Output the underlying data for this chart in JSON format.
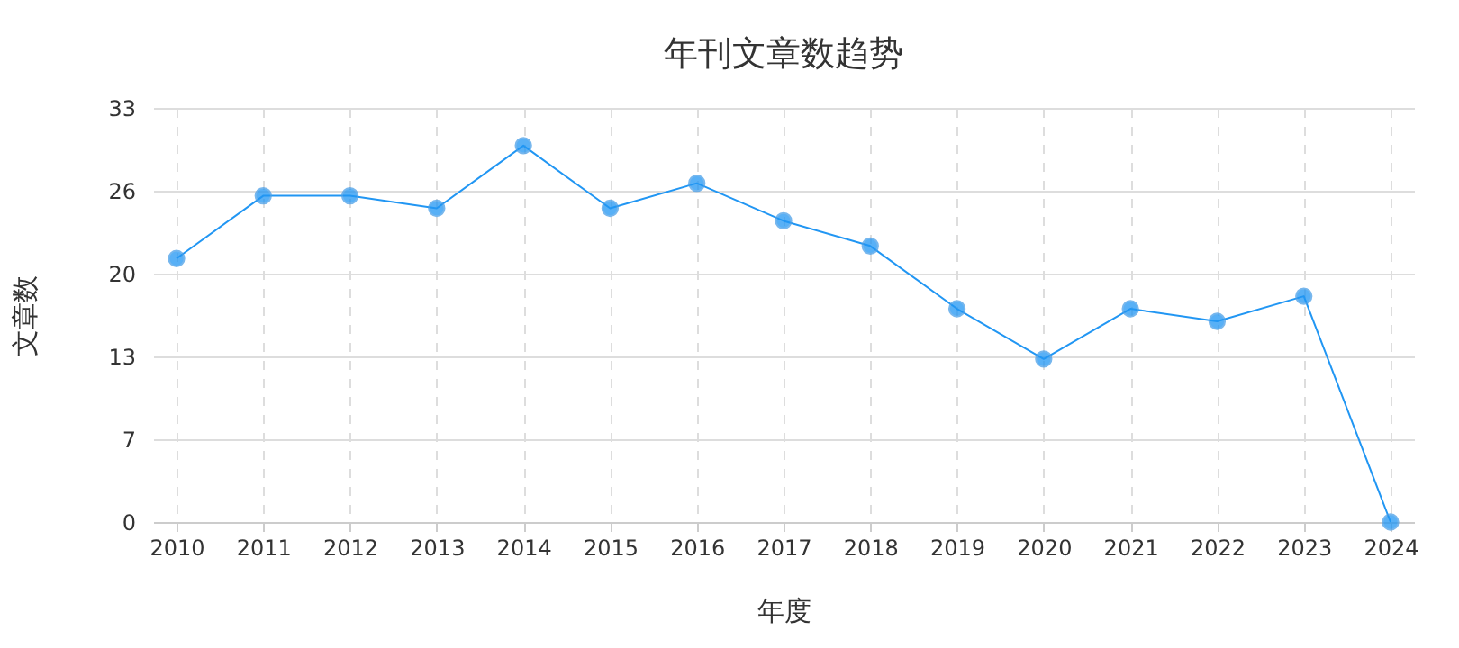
{
  "chart_data": {
    "type": "line",
    "title": "年刊文章数趋势",
    "xlabel": "年度",
    "ylabel": "文章数",
    "categories": [
      "2010",
      "2011",
      "2012",
      "2013",
      "2014",
      "2015",
      "2016",
      "2017",
      "2018",
      "2019",
      "2020",
      "2021",
      "2022",
      "2023",
      "2024"
    ],
    "series": [
      {
        "color": "#2196f3",
        "values": [
          21,
          26,
          26,
          25,
          30,
          25,
          27,
          24,
          22,
          17,
          13,
          17,
          16,
          18,
          0
        ]
      }
    ],
    "ylim": [
      0,
      33
    ],
    "yticks": [
      0,
      {
        "value": 6.6,
        "label": "7"
      },
      {
        "value": 13.2,
        "label": "13"
      },
      {
        "value": 19.8,
        "label": "20"
      },
      {
        "value": 26.4,
        "label": "26"
      },
      33
    ],
    "grid": true,
    "marker": "circle",
    "line_style": "solid",
    "legend": false
  }
}
